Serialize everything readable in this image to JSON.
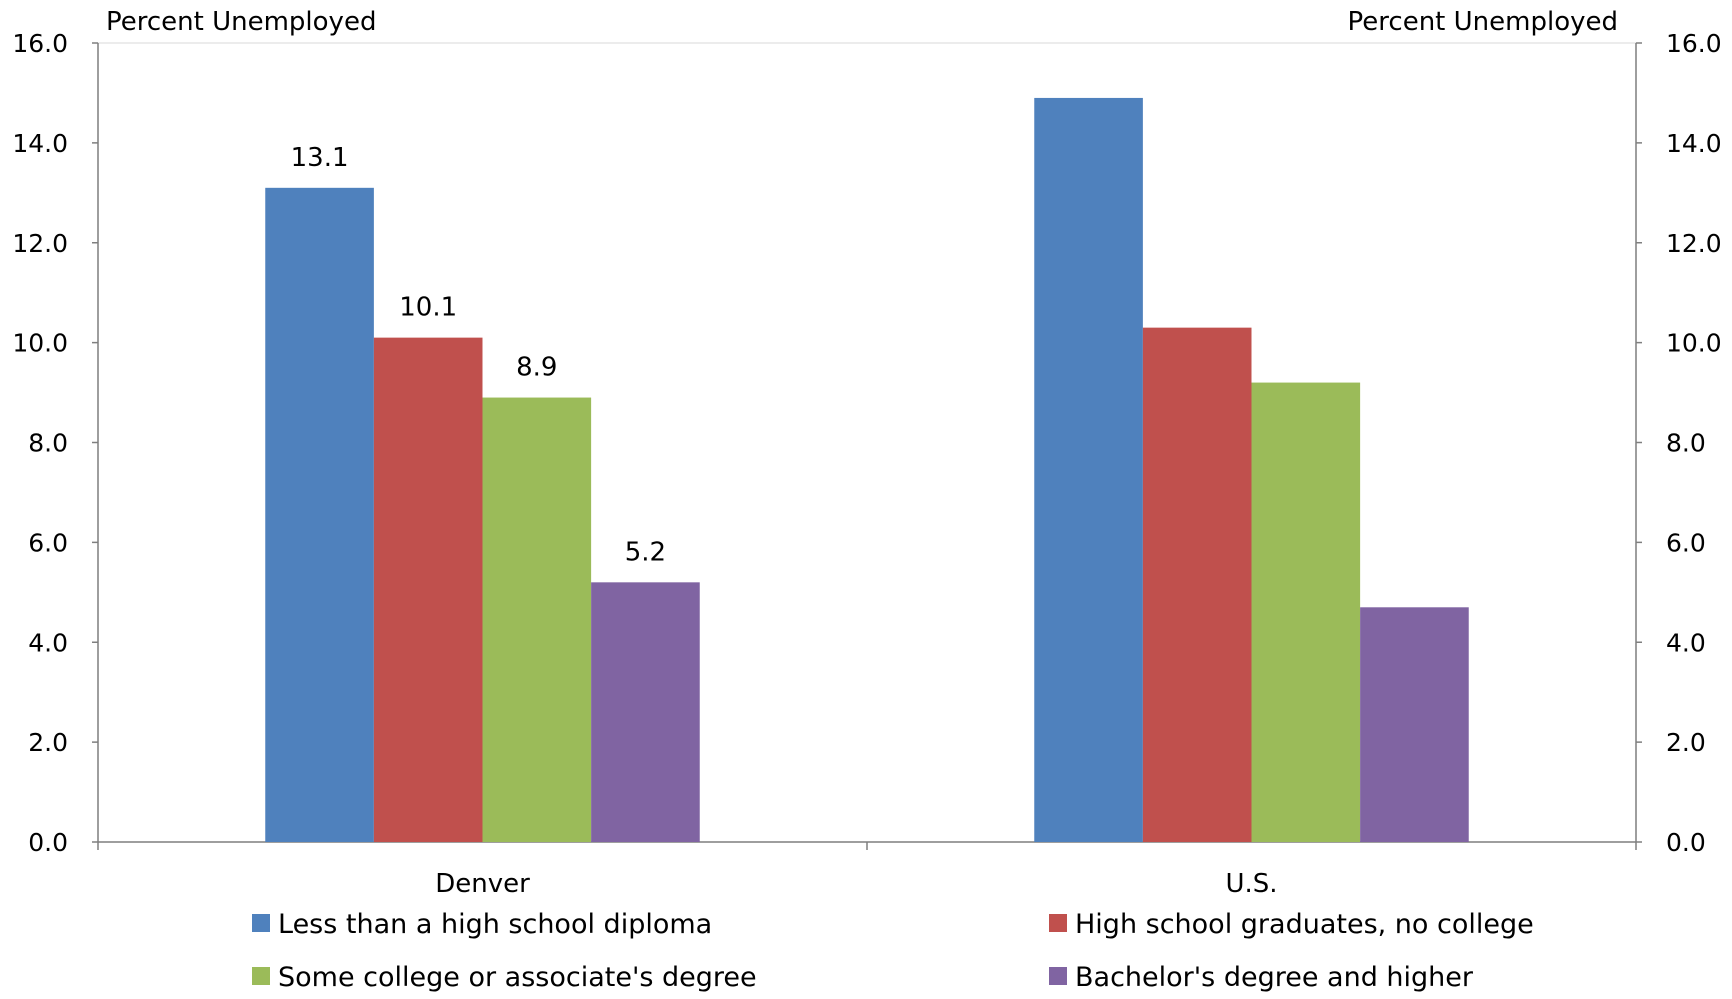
{
  "chart_data": {
    "type": "bar",
    "title": "",
    "ylabel_left": "Percent Unemployed",
    "ylabel_right": "Percent Unemployed",
    "xlabel": "",
    "ylim": [
      0,
      16
    ],
    "yticks": [
      "0.0",
      "2.0",
      "4.0",
      "6.0",
      "8.0",
      "10.0",
      "12.0",
      "14.0",
      "16.0"
    ],
    "categories": [
      "Denver",
      "U.S."
    ],
    "grid": false,
    "legend_position": "bottom",
    "series": [
      {
        "name": "Less than a high school diploma",
        "color": "#4F81BD",
        "values": [
          13.1,
          14.9
        ],
        "labels": [
          "13.1",
          ""
        ]
      },
      {
        "name": "High school graduates, no college",
        "color": "#C0504D",
        "values": [
          10.1,
          10.3
        ],
        "labels": [
          "10.1",
          ""
        ]
      },
      {
        "name": "Some college or associate's degree",
        "color": "#9BBB59",
        "values": [
          8.9,
          9.2
        ],
        "labels": [
          "8.9",
          ""
        ]
      },
      {
        "name": "Bachelor's degree and higher",
        "color": "#8064A2",
        "values": [
          5.2,
          4.7
        ],
        "labels": [
          "5.2",
          ""
        ]
      }
    ]
  }
}
